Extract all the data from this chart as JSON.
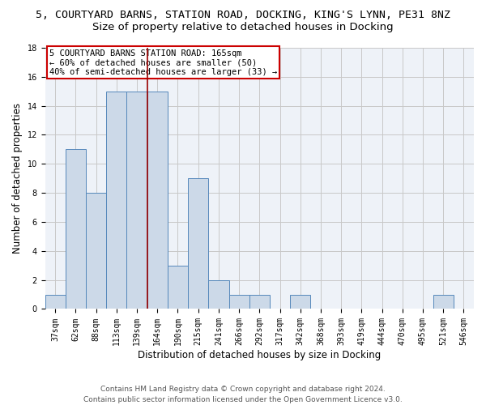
{
  "title_line1": "5, COURTYARD BARNS, STATION ROAD, DOCKING, KING'S LYNN, PE31 8NZ",
  "title_line2": "Size of property relative to detached houses in Docking",
  "xlabel": "Distribution of detached houses by size in Docking",
  "ylabel": "Number of detached properties",
  "bin_labels": [
    "37sqm",
    "62sqm",
    "88sqm",
    "113sqm",
    "139sqm",
    "164sqm",
    "190sqm",
    "215sqm",
    "241sqm",
    "266sqm",
    "292sqm",
    "317sqm",
    "342sqm",
    "368sqm",
    "393sqm",
    "419sqm",
    "444sqm",
    "470sqm",
    "495sqm",
    "521sqm",
    "546sqm"
  ],
  "bar_values": [
    1,
    11,
    8,
    15,
    15,
    15,
    3,
    9,
    2,
    1,
    1,
    0,
    1,
    0,
    0,
    0,
    0,
    0,
    0,
    1,
    0
  ],
  "bar_color": "#ccd9e8",
  "bar_edgecolor": "#5588bb",
  "vline_x": 4.5,
  "vline_color": "#990000",
  "annotation_label": "5 COURTYARD BARNS STATION ROAD: 165sqm",
  "annotation_line2": "← 60% of detached houses are smaller (50)",
  "annotation_line3": "40% of semi-detached houses are larger (33) →",
  "annotation_box_color": "#cc0000",
  "ylim": [
    0,
    18
  ],
  "yticks": [
    0,
    2,
    4,
    6,
    8,
    10,
    12,
    14,
    16,
    18
  ],
  "footer_line1": "Contains HM Land Registry data © Crown copyright and database right 2024.",
  "footer_line2": "Contains public sector information licensed under the Open Government Licence v3.0.",
  "bg_color": "#eef2f8",
  "grid_color": "#c8c8c8",
  "title1_fontsize": 9.5,
  "title2_fontsize": 9.5,
  "axis_label_fontsize": 8.5,
  "tick_fontsize": 7,
  "annotation_fontsize": 7.5,
  "footer_fontsize": 6.5
}
